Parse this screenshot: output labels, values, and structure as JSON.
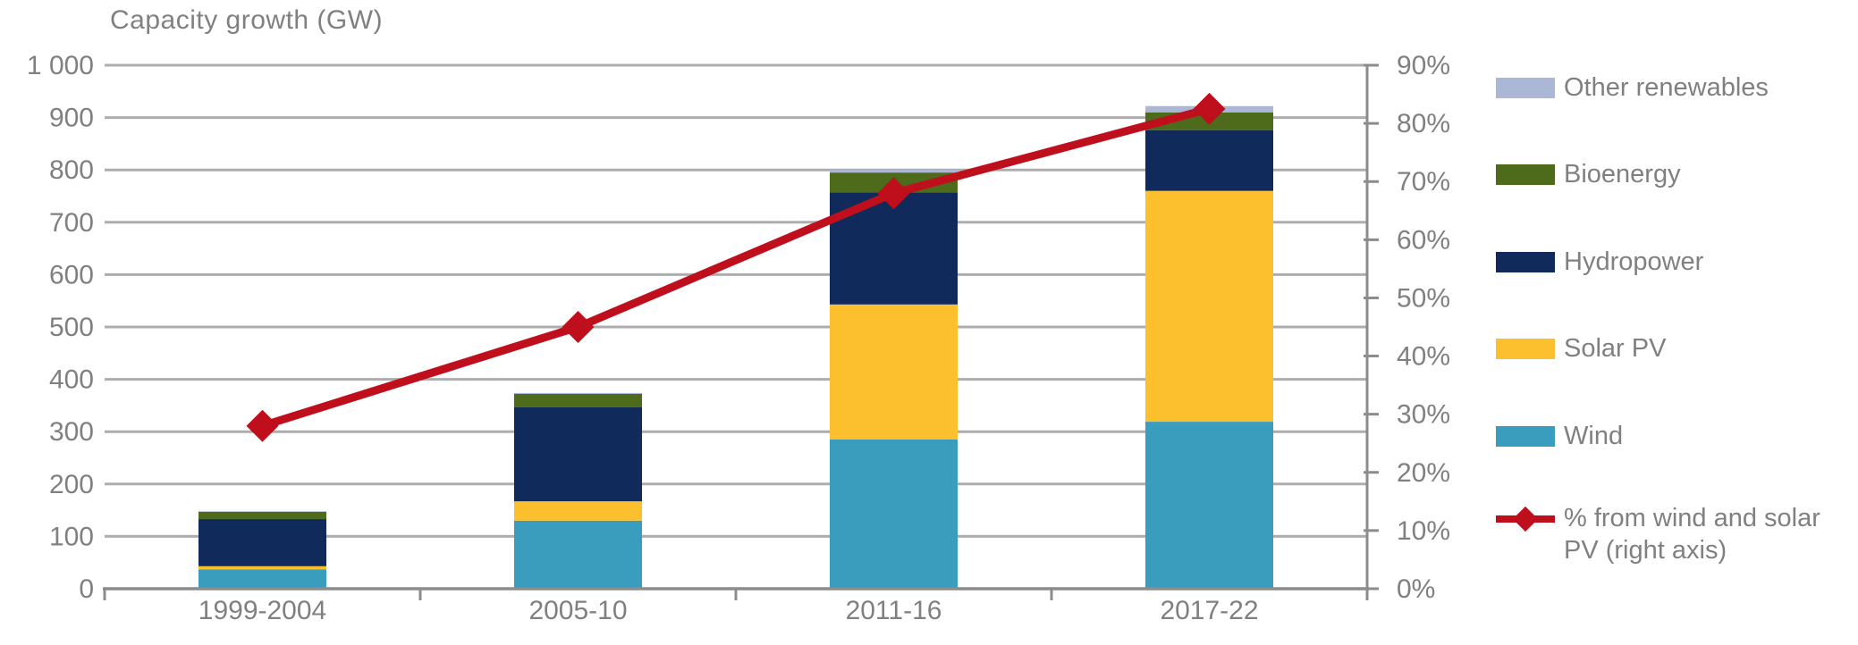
{
  "title": "Capacity growth (GW)",
  "legend": {
    "items": [
      {
        "label": "Other renewables",
        "color": "#aab8d6",
        "type": "swatch"
      },
      {
        "label": "Bioenergy",
        "color": "#4e6a1b",
        "type": "swatch"
      },
      {
        "label": "Hydropower",
        "color": "#102a5c",
        "type": "swatch"
      },
      {
        "label": "Solar PV",
        "color": "#fcc02f",
        "type": "swatch"
      },
      {
        "label": "Wind",
        "color": "#3a9dbe",
        "type": "swatch"
      },
      {
        "label": "%  from wind and solar PV (right axis)",
        "color": "#c00f1c",
        "type": "line-diamond"
      }
    ]
  },
  "chart_data": {
    "type": "bar",
    "subtype": "stacked-columns-with-percent-line",
    "title": "Capacity growth (GW)",
    "categories": [
      "1999-2004",
      "2005-10",
      "2011-16",
      "2017-22"
    ],
    "series": [
      {
        "name": "Wind",
        "color": "#3a9dbe",
        "values": [
          37,
          130,
          285,
          319
        ]
      },
      {
        "name": "Solar PV",
        "color": "#fcc02f",
        "values": [
          6,
          37,
          258,
          441
        ]
      },
      {
        "name": "Hydropower",
        "color": "#102a5c",
        "values": [
          90,
          180,
          214,
          116
        ]
      },
      {
        "name": "Bioenergy",
        "color": "#4e6a1b",
        "values": [
          14,
          25,
          38,
          34
        ]
      },
      {
        "name": "Other renewables",
        "color": "#aab8d6",
        "values": [
          1,
          2,
          5,
          12
        ]
      }
    ],
    "stack_order_bottom_to_top": [
      "Wind",
      "Solar PV",
      "Hydropower",
      "Bioenergy",
      "Other renewables"
    ],
    "totals_gw": [
      148,
      374,
      800,
      922
    ],
    "line_series": {
      "name": "%  from wind and solar PV (right axis)",
      "color": "#c00f1c",
      "axis": "right",
      "marker": "diamond",
      "values_percent": [
        28,
        45,
        68,
        82.5
      ]
    },
    "left_axis": {
      "label": "Capacity growth (GW)",
      "min": 0,
      "max": 1000,
      "step": 100,
      "tick_labels": [
        "1 000",
        "900",
        "800",
        "700",
        "600",
        "500",
        "400",
        "300",
        "200",
        "100",
        "0"
      ]
    },
    "right_axis": {
      "min_percent": 0,
      "max_percent": 90,
      "step_percent": 10,
      "tick_labels": [
        "90%",
        "80%",
        "70%",
        "60%",
        "50%",
        "40%",
        "30%",
        "20%",
        "10%",
        "0%"
      ]
    },
    "grid": true,
    "legend_position": "right"
  },
  "colors": {
    "grid": "#adadad",
    "axis": "#8c8c8c",
    "text": "#808080",
    "background": "#ffffff"
  }
}
